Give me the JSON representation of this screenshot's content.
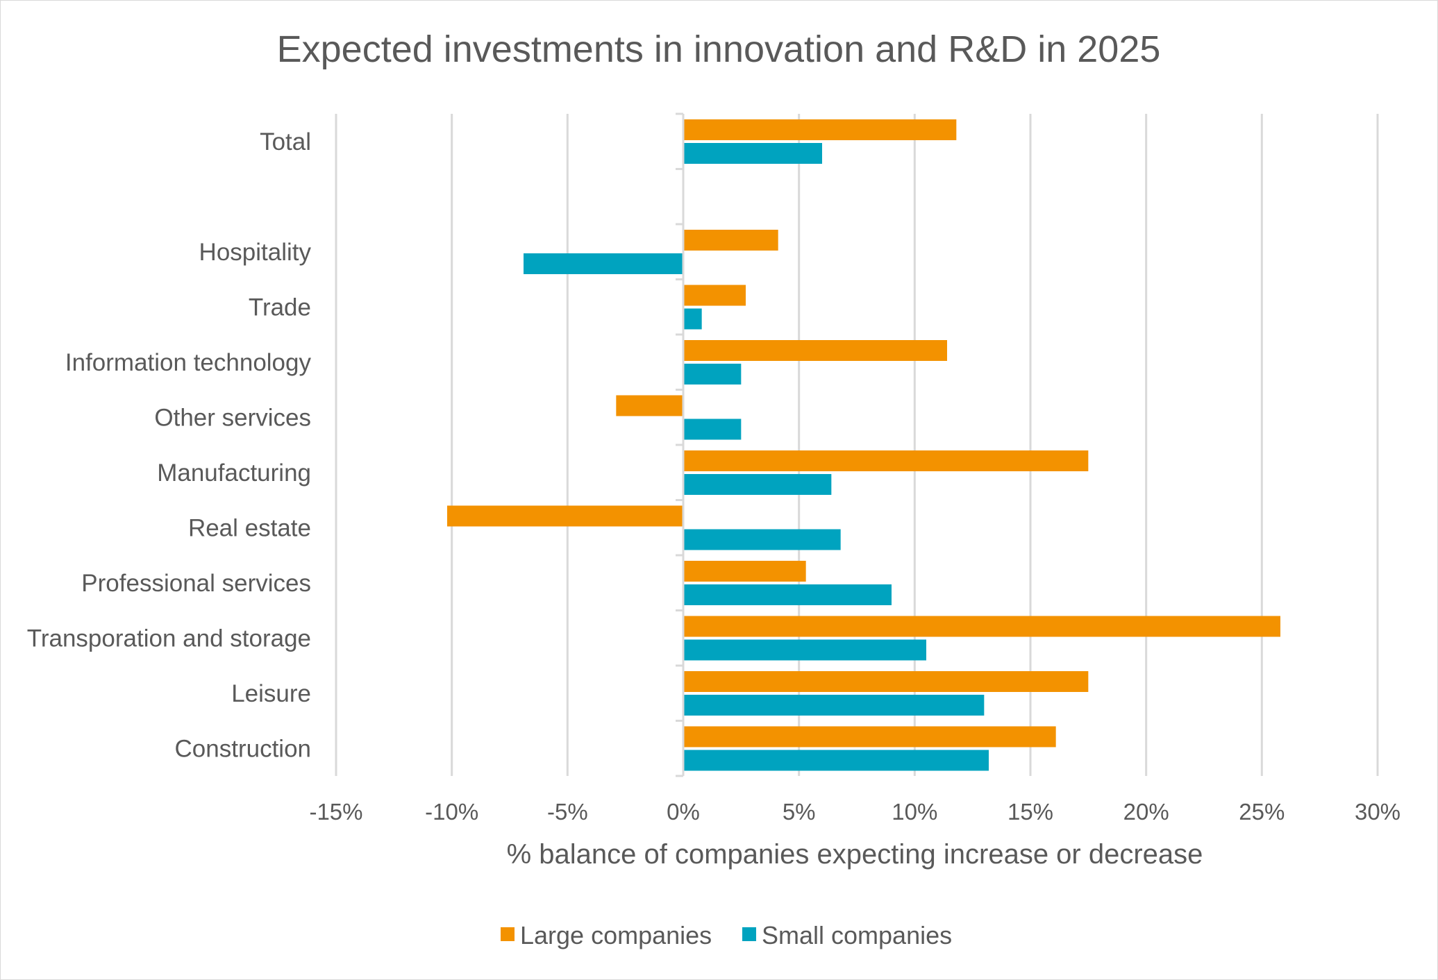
{
  "chart_data": {
    "type": "bar",
    "orientation": "horizontal",
    "title": "Expected investments in innovation and R&D in 2025",
    "xlabel": "% balance of companies expecting increase or decrease",
    "ylabel": "",
    "xlim": [
      -15,
      30
    ],
    "x_ticks": [
      -15,
      -10,
      -5,
      0,
      5,
      10,
      15,
      20,
      25,
      30
    ],
    "x_tick_labels": [
      "-15%",
      "-10%",
      "-5%",
      "0%",
      "5%",
      "10%",
      "15%",
      "20%",
      "25%",
      "30%"
    ],
    "grid": true,
    "legend_position": "bottom",
    "categories": [
      "Total",
      "",
      "Hospitality",
      "Trade",
      "Information technology",
      "Other services",
      "Manufacturing",
      "Real estate",
      "Professional services",
      "Transporation and storage",
      "Leisure",
      "Construction"
    ],
    "series": [
      {
        "name": "Large companies",
        "color": "#F39200",
        "values": [
          11.8,
          null,
          4.1,
          2.7,
          11.4,
          -2.9,
          17.5,
          -10.2,
          5.3,
          25.8,
          17.5,
          16.1
        ]
      },
      {
        "name": "Small companies",
        "color": "#00A3BF",
        "values": [
          6.0,
          null,
          -6.9,
          0.8,
          2.5,
          2.5,
          6.4,
          6.8,
          9.0,
          10.5,
          13.0,
          13.2
        ]
      }
    ]
  }
}
